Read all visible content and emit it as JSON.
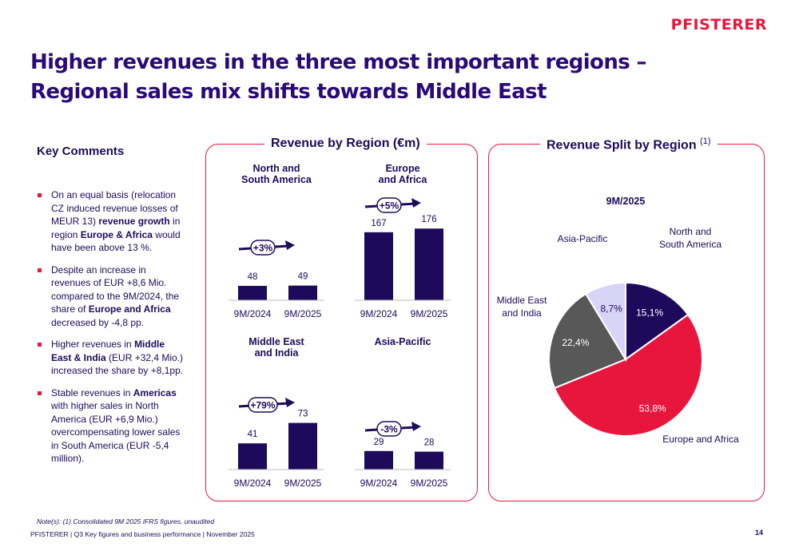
{
  "header": {
    "logo": "PFISTERER",
    "title": "Higher revenues in the three most important regions – Regional sales mix shifts towards Middle East"
  },
  "key_comments": {
    "title": "Key Comments",
    "bullets": [
      [
        {
          "t": "On an equal basis (relocation CZ induced  revenue losses of MEUR 13) "
        },
        {
          "t": "revenue growth",
          "b": true
        },
        {
          "t": " in region "
        },
        {
          "t": "Europe & Africa",
          "b": true
        },
        {
          "t": " would have been above 13 %."
        }
      ],
      [
        {
          "t": "Despite an increase in revenues of EUR +8,6 Mio. compared to the 9M/2024, the share of "
        },
        {
          "t": "Europe and Africa",
          "b": true
        },
        {
          "t": " decreased by -4,8 pp."
        }
      ],
      [
        {
          "t": "Higher revenues in "
        },
        {
          "t": "Middle East & India",
          "b": true
        },
        {
          "t": " (EUR +32,4 Mio.) increased the share by +8,1pp."
        }
      ],
      [
        {
          "t": "Stable revenues in "
        },
        {
          "t": "Americas",
          "b": true
        },
        {
          "t": " with higher sales in North America (EUR +6,9 Mio.) overcompensating lower sales in South America (EUR -5,4 million)."
        }
      ]
    ]
  },
  "panels": {
    "revenue_title": "Revenue by Region (€m)",
    "split_title": "Revenue Split by Region",
    "split_title_sup": "(1)"
  },
  "colors": {
    "bar": "#1e0a5a",
    "accent": "#e8163c",
    "text": "#1e0a5a",
    "pie": [
      "#1e0a5a",
      "#e8163c",
      "#585858",
      "#d8d4f8"
    ]
  },
  "chart_data": [
    {
      "type": "bar",
      "title": "North and South America",
      "categories": [
        "9M/2024",
        "9M/2025"
      ],
      "values": [
        48,
        49
      ],
      "change": "+3%",
      "ylim": [
        0,
        200
      ]
    },
    {
      "type": "bar",
      "title": "Europe and Africa",
      "categories": [
        "9M/2024",
        "9M/2025"
      ],
      "values": [
        167,
        176
      ],
      "change": "+5%",
      "ylim": [
        0,
        200
      ]
    },
    {
      "type": "bar",
      "title": "Middle East and India",
      "categories": [
        "9M/2024",
        "9M/2025"
      ],
      "values": [
        41,
        73
      ],
      "change": "+79%",
      "ylim": [
        0,
        100
      ]
    },
    {
      "type": "bar",
      "title": "Asia-Pacific",
      "categories": [
        "9M/2024",
        "9M/2025"
      ],
      "values": [
        29,
        28
      ],
      "change": "-3%",
      "ylim": [
        0,
        100
      ]
    },
    {
      "type": "pie",
      "title": "9M/2025",
      "slices": [
        {
          "label": "North and South America",
          "value": 15.1,
          "display": "15,1%"
        },
        {
          "label": "Europe and Africa",
          "value": 53.8,
          "display": "53,8%"
        },
        {
          "label": "Middle East and India",
          "value": 22.4,
          "display": "22,4%"
        },
        {
          "label": "Asia-Pacific",
          "value": 8.7,
          "display": "8,7%"
        }
      ]
    }
  ],
  "footer": {
    "note": "Note(s): (1) Consolidated 9M 2025 IFRS figures, unaudited",
    "text": "PFISTERER | Q3 Key figures and business performance | November 2025",
    "page": "14"
  }
}
